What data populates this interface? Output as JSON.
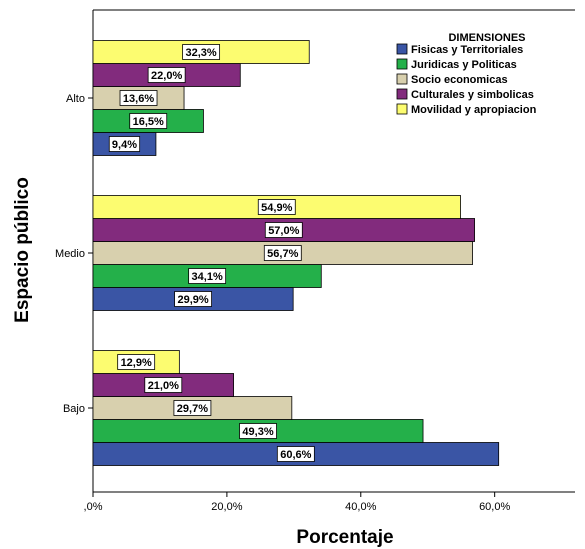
{
  "chart_data": {
    "type": "bar",
    "orientation": "horizontal",
    "title": "",
    "xlabel": "Porcentaje",
    "ylabel": "Espacio público",
    "xlim": [
      0,
      72
    ],
    "x_ticks": [
      0,
      20,
      40,
      60
    ],
    "x_tick_labels": [
      ",0%",
      "20,0%",
      "40,0%",
      "60,0%"
    ],
    "categories": [
      "Alto",
      "Medio",
      "Bajo"
    ],
    "legend": {
      "title": "DIMENSIONES",
      "placement": "top-right"
    },
    "grid": false,
    "series": [
      {
        "name": "Fisicas y Territoriales",
        "color": "#3a55a5",
        "values": [
          9.4,
          29.9,
          60.6
        ],
        "labels": [
          "9,4%",
          "29,9%",
          "60,6%"
        ]
      },
      {
        "name": "Juridicas y Politicas",
        "color": "#24b04a",
        "values": [
          16.5,
          34.1,
          49.3
        ],
        "labels": [
          "16,5%",
          "34,1%",
          "49,3%"
        ]
      },
      {
        "name": "Socio economicas",
        "color": "#d8d0ae",
        "values": [
          13.6,
          56.7,
          29.7
        ],
        "labels": [
          "13,6%",
          "56,7%",
          "29,7%"
        ]
      },
      {
        "name": "Culturales y simbolicas",
        "color": "#822b7d",
        "values": [
          22.0,
          57.0,
          21.0
        ],
        "labels": [
          "22,0%",
          "57,0%",
          "21,0%"
        ]
      },
      {
        "name": "Movilidad y apropiacion",
        "color": "#fcfc70",
        "values": [
          32.3,
          54.9,
          12.9
        ],
        "labels": [
          "32,3%",
          "54,9%",
          "12,9%"
        ]
      }
    ]
  }
}
